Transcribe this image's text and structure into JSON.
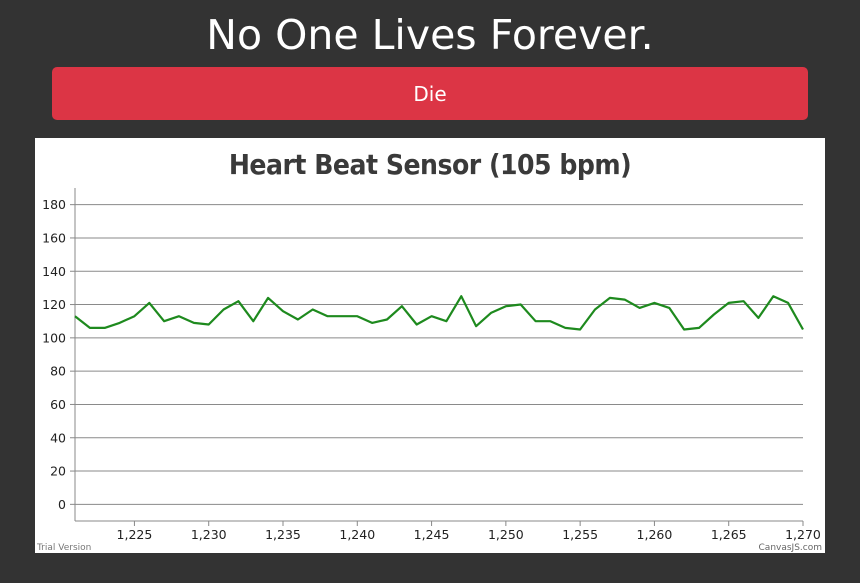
{
  "header": {
    "title": "No One Lives Forever."
  },
  "actions": {
    "die_label": "Die"
  },
  "footer": {
    "trial_text": "Trial Version",
    "credit_text": "CanvasJS.com"
  },
  "colors": {
    "page_background": "#333333",
    "button": "#dc3545",
    "series_line": "#1e8a1e",
    "gridline": "#8a8a8a",
    "title_text": "#3a3a3a"
  },
  "chart_data": {
    "type": "line",
    "title": "Heart Beat Sensor (105 bpm)",
    "xlabel": "",
    "ylabel": "",
    "xlim": [
      1221,
      1270
    ],
    "ylim": [
      -10,
      190
    ],
    "x_ticks": [
      1225,
      1230,
      1235,
      1240,
      1245,
      1250,
      1255,
      1260,
      1265,
      1270
    ],
    "x_tick_labels": [
      "1,225",
      "1,230",
      "1,235",
      "1,240",
      "1,245",
      "1,250",
      "1,255",
      "1,260",
      "1,265",
      "1,270"
    ],
    "y_ticks": [
      0,
      20,
      40,
      60,
      80,
      100,
      120,
      140,
      160,
      180
    ],
    "y_tick_labels": [
      "0",
      "20",
      "40",
      "60",
      "80",
      "100",
      "120",
      "140",
      "160",
      "180"
    ],
    "grid": true,
    "legend": "none",
    "series": [
      {
        "name": "Heart Beat",
        "x": [
          1221,
          1222,
          1223,
          1224,
          1225,
          1226,
          1227,
          1228,
          1229,
          1230,
          1231,
          1232,
          1233,
          1234,
          1235,
          1236,
          1237,
          1238,
          1239,
          1240,
          1241,
          1242,
          1243,
          1244,
          1245,
          1246,
          1247,
          1248,
          1249,
          1250,
          1251,
          1252,
          1253,
          1254,
          1255,
          1256,
          1257,
          1258,
          1259,
          1260,
          1261,
          1262,
          1263,
          1264,
          1265,
          1266,
          1267,
          1268,
          1269,
          1270
        ],
        "values": [
          113,
          106,
          106,
          109,
          113,
          121,
          110,
          113,
          109,
          108,
          117,
          122,
          110,
          124,
          116,
          111,
          117,
          113,
          113,
          113,
          109,
          111,
          119,
          108,
          113,
          110,
          125,
          107,
          115,
          119,
          120,
          110,
          110,
          106,
          105,
          117,
          124,
          123,
          118,
          121,
          118,
          105,
          106,
          114,
          121,
          122,
          112,
          125,
          121,
          105
        ]
      }
    ]
  }
}
